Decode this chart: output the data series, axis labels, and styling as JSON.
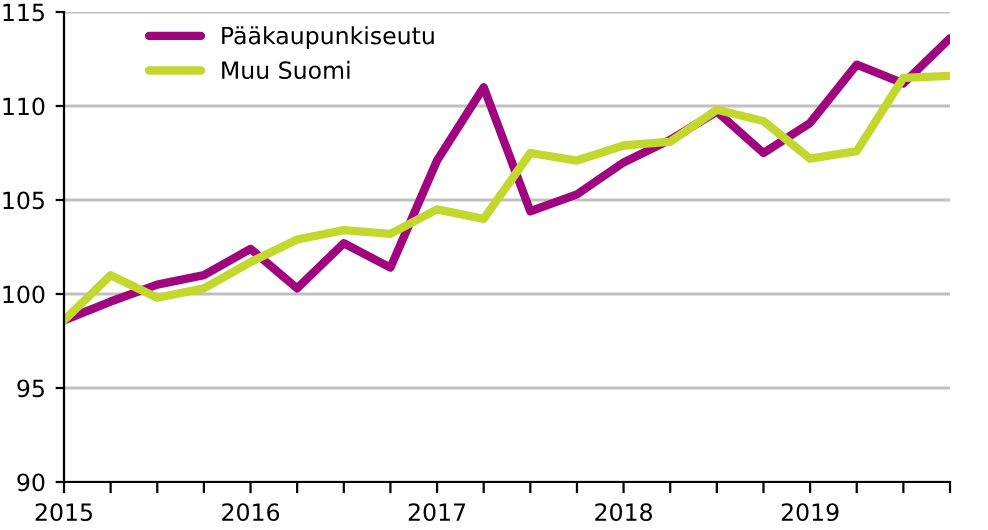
{
  "chart_data": {
    "type": "line",
    "categories": [
      "2015",
      null,
      null,
      null,
      "2016",
      null,
      null,
      null,
      "2017",
      null,
      null,
      null,
      "2018",
      null,
      null,
      null,
      "2019",
      null,
      null,
      null
    ],
    "series": [
      {
        "name": "Pääkaupunkiseutu",
        "color": "#a0057f",
        "values": [
          98.6,
          99.6,
          100.5,
          101.0,
          102.4,
          100.3,
          102.7,
          101.4,
          107.1,
          111.0,
          104.4,
          105.3,
          107.0,
          108.2,
          109.7,
          107.5,
          109.1,
          112.2,
          111.2,
          113.6
        ]
      },
      {
        "name": "Muu Suomi",
        "color": "#c3d82d",
        "values": [
          98.6,
          101.0,
          99.8,
          100.3,
          101.7,
          102.9,
          103.4,
          103.2,
          104.5,
          104.0,
          107.5,
          107.1,
          107.9,
          108.1,
          109.8,
          109.2,
          107.2,
          107.6,
          111.5,
          111.6
        ]
      }
    ],
    "ylim": [
      90,
      115
    ],
    "yticks": [
      90,
      95,
      100,
      105,
      110,
      115
    ],
    "grid": "y",
    "legend": "top left",
    "marker": "none",
    "line_style": "solid"
  }
}
